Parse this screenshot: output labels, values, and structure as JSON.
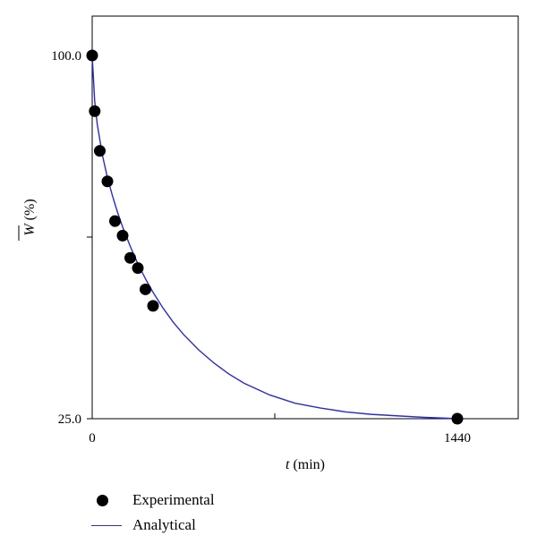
{
  "chart_data": {
    "type": "scatter",
    "xlabel_var": "t",
    "xlabel_unit": " (min)",
    "ylabel_var": "W",
    "ylabel_unit": " (%)",
    "x_ticks": [
      {
        "value": 0,
        "label": "0"
      },
      {
        "value": 720,
        "label": ""
      },
      {
        "value": 1440,
        "label": "1440"
      }
    ],
    "y_ticks": [
      {
        "value": 25,
        "label": "25.0"
      },
      {
        "value": 62.5,
        "label": ""
      },
      {
        "value": 100,
        "label": "100.0"
      }
    ],
    "xlim": [
      0,
      1680
    ],
    "ylim": [
      25,
      100
    ],
    "series": [
      {
        "name": "Experimental",
        "kind": "scatter",
        "color": "#000000",
        "x": [
          0,
          10,
          30,
          60,
          90,
          120,
          150,
          180,
          210,
          240,
          1440
        ],
        "y": [
          100.0,
          88.5,
          80.3,
          74.0,
          65.8,
          62.8,
          58.2,
          56.1,
          51.7,
          48.3,
          25.0
        ]
      },
      {
        "name": "Analytical",
        "kind": "line",
        "color": "#2a2ad0",
        "x": [
          0,
          10,
          20,
          40,
          60,
          80,
          100,
          120,
          150,
          180,
          210,
          240,
          280,
          320,
          360,
          420,
          480,
          540,
          600,
          700,
          800,
          900,
          1000,
          1100,
          1200,
          1300,
          1400,
          1440
        ],
        "y": [
          100.0,
          90.5,
          85.8,
          79.5,
          74.8,
          71.0,
          67.6,
          64.6,
          60.6,
          57.0,
          53.9,
          51.1,
          47.8,
          44.9,
          42.4,
          39.2,
          36.5,
          34.2,
          32.3,
          29.9,
          28.2,
          27.2,
          26.4,
          25.9,
          25.6,
          25.3,
          25.1,
          25.0
        ]
      }
    ]
  }
}
